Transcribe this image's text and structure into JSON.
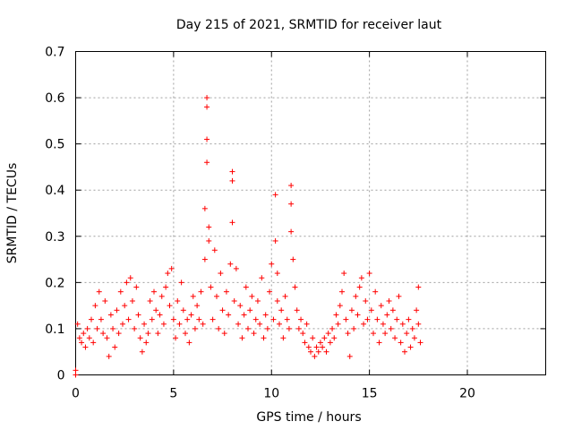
{
  "chart_data": {
    "type": "scatter",
    "title": "Day 215 of 2021, SRMTID for receiver laut",
    "xlabel": "GPS time / hours",
    "ylabel": "SRMTID / TECUs",
    "xlim": [
      0,
      24
    ],
    "ylim": [
      0,
      0.7
    ],
    "xticks": [
      0,
      5,
      10,
      15,
      20
    ],
    "xtick_labels": [
      "0",
      "5",
      "10",
      "15",
      "20"
    ],
    "yticks": [
      0,
      0.1,
      0.2,
      0.3,
      0.4,
      0.5,
      0.6,
      0.7
    ],
    "ytick_labels": [
      "0",
      "0.1",
      "0.2",
      "0.3",
      "0.4",
      "0.5",
      "0.6",
      "0.7"
    ],
    "grid": true,
    "marker": "+",
    "series": [
      {
        "name": "SRMTID",
        "color": "#ff0000",
        "x": [
          0.0,
          0.0,
          0.1,
          0.2,
          0.3,
          0.4,
          0.5,
          0.6,
          0.7,
          0.8,
          0.9,
          1.0,
          1.1,
          1.2,
          1.3,
          1.4,
          1.5,
          1.6,
          1.7,
          1.8,
          1.9,
          2.0,
          2.1,
          2.2,
          2.3,
          2.4,
          2.5,
          2.6,
          2.7,
          2.8,
          2.9,
          3.0,
          3.1,
          3.2,
          3.3,
          3.4,
          3.5,
          3.6,
          3.7,
          3.8,
          3.9,
          4.0,
          4.1,
          4.2,
          4.3,
          4.4,
          4.5,
          4.6,
          4.7,
          4.8,
          4.9,
          5.0,
          5.1,
          5.2,
          5.3,
          5.4,
          5.5,
          5.6,
          5.7,
          5.8,
          5.9,
          6.0,
          6.1,
          6.2,
          6.3,
          6.4,
          6.5,
          6.6,
          6.6,
          6.7,
          6.7,
          6.7,
          6.7,
          6.8,
          6.8,
          6.9,
          7.0,
          7.1,
          7.2,
          7.3,
          7.4,
          7.5,
          7.6,
          7.7,
          7.8,
          7.9,
          8.0,
          8.0,
          8.0,
          8.1,
          8.2,
          8.3,
          8.4,
          8.5,
          8.6,
          8.7,
          8.8,
          8.9,
          9.0,
          9.1,
          9.2,
          9.3,
          9.4,
          9.5,
          9.6,
          9.7,
          9.8,
          9.9,
          10.0,
          10.1,
          10.2,
          10.2,
          10.3,
          10.3,
          10.4,
          10.5,
          10.6,
          10.7,
          10.8,
          10.9,
          11.0,
          11.0,
          11.0,
          11.1,
          11.2,
          11.3,
          11.4,
          11.5,
          11.6,
          11.7,
          11.8,
          11.9,
          12.0,
          12.1,
          12.2,
          12.3,
          12.4,
          12.5,
          12.6,
          12.7,
          12.8,
          12.9,
          13.0,
          13.1,
          13.2,
          13.3,
          13.4,
          13.5,
          13.6,
          13.7,
          13.8,
          13.9,
          14.0,
          14.1,
          14.2,
          14.3,
          14.4,
          14.5,
          14.6,
          14.7,
          14.8,
          14.9,
          15.0,
          15.1,
          15.2,
          15.3,
          15.4,
          15.5,
          15.6,
          15.7,
          15.8,
          15.9,
          16.0,
          16.1,
          16.2,
          16.3,
          16.4,
          16.5,
          16.6,
          16.7,
          16.8,
          16.9,
          17.0,
          17.1,
          17.2,
          17.3,
          17.4,
          17.5,
          17.5,
          17.6
        ],
        "y": [
          0.0,
          0.01,
          0.11,
          0.08,
          0.07,
          0.09,
          0.06,
          0.1,
          0.08,
          0.12,
          0.07,
          0.15,
          0.1,
          0.18,
          0.12,
          0.09,
          0.16,
          0.08,
          0.04,
          0.13,
          0.1,
          0.06,
          0.14,
          0.09,
          0.18,
          0.11,
          0.15,
          0.2,
          0.12,
          0.21,
          0.16,
          0.1,
          0.19,
          0.13,
          0.08,
          0.05,
          0.11,
          0.07,
          0.09,
          0.16,
          0.12,
          0.18,
          0.14,
          0.09,
          0.13,
          0.17,
          0.11,
          0.19,
          0.22,
          0.15,
          0.23,
          0.12,
          0.08,
          0.16,
          0.11,
          0.2,
          0.14,
          0.09,
          0.12,
          0.07,
          0.13,
          0.17,
          0.1,
          0.15,
          0.12,
          0.18,
          0.11,
          0.25,
          0.36,
          0.46,
          0.51,
          0.58,
          0.6,
          0.32,
          0.29,
          0.19,
          0.12,
          0.27,
          0.17,
          0.1,
          0.22,
          0.14,
          0.09,
          0.18,
          0.13,
          0.24,
          0.33,
          0.42,
          0.44,
          0.16,
          0.23,
          0.11,
          0.15,
          0.08,
          0.13,
          0.19,
          0.1,
          0.14,
          0.17,
          0.09,
          0.12,
          0.16,
          0.11,
          0.21,
          0.08,
          0.13,
          0.1,
          0.18,
          0.24,
          0.12,
          0.29,
          0.39,
          0.16,
          0.22,
          0.11,
          0.14,
          0.08,
          0.17,
          0.12,
          0.1,
          0.31,
          0.37,
          0.41,
          0.25,
          0.19,
          0.14,
          0.1,
          0.12,
          0.09,
          0.07,
          0.11,
          0.06,
          0.05,
          0.08,
          0.04,
          0.06,
          0.05,
          0.07,
          0.06,
          0.08,
          0.05,
          0.09,
          0.07,
          0.1,
          0.08,
          0.13,
          0.11,
          0.15,
          0.18,
          0.22,
          0.12,
          0.09,
          0.04,
          0.14,
          0.1,
          0.17,
          0.13,
          0.19,
          0.21,
          0.11,
          0.16,
          0.12,
          0.22,
          0.14,
          0.09,
          0.18,
          0.12,
          0.07,
          0.15,
          0.11,
          0.09,
          0.13,
          0.16,
          0.1,
          0.14,
          0.08,
          0.12,
          0.17,
          0.07,
          0.11,
          0.05,
          0.09,
          0.12,
          0.06,
          0.1,
          0.08,
          0.14,
          0.19,
          0.11,
          0.07
        ]
      }
    ]
  }
}
